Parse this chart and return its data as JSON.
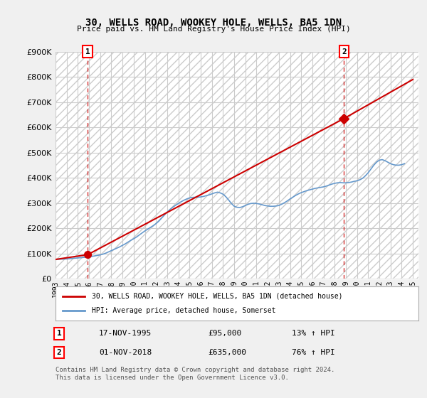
{
  "title": "30, WELLS ROAD, WOOKEY HOLE, WELLS, BA5 1DN",
  "subtitle": "Price paid vs. HM Land Registry's House Price Index (HPI)",
  "background_color": "#f0f0f0",
  "plot_bg_color": "#ffffff",
  "hatch_color": "#d0d0d0",
  "grid_color": "#cccccc",
  "property_color": "#cc0000",
  "hpi_color": "#6699cc",
  "ylim": [
    0,
    900000
  ],
  "yticks": [
    0,
    100000,
    200000,
    300000,
    400000,
    500000,
    600000,
    700000,
    800000,
    900000
  ],
  "sale1_date": "1995-11-17",
  "sale1_price": 95000,
  "sale1_label": "1",
  "sale2_date": "2018-11-01",
  "sale2_price": 635000,
  "sale2_label": "2",
  "legend_property": "30, WELLS ROAD, WOOKEY HOLE, WELLS, BA5 1DN (detached house)",
  "legend_hpi": "HPI: Average price, detached house, Somerset",
  "table_row1": [
    "1",
    "17-NOV-1995",
    "£95,000",
    "13% ↑ HPI"
  ],
  "table_row2": [
    "2",
    "01-NOV-2018",
    "£635,000",
    "76% ↑ HPI"
  ],
  "footer": "Contains HM Land Registry data © Crown copyright and database right 2024.\nThis data is licensed under the Open Government Licence v3.0.",
  "hpi_data_x": [
    1993.0,
    1993.25,
    1993.5,
    1993.75,
    1994.0,
    1994.25,
    1994.5,
    1994.75,
    1995.0,
    1995.25,
    1995.5,
    1995.75,
    1996.0,
    1996.25,
    1996.5,
    1996.75,
    1997.0,
    1997.25,
    1997.5,
    1997.75,
    1998.0,
    1998.25,
    1998.5,
    1998.75,
    1999.0,
    1999.25,
    1999.5,
    1999.75,
    2000.0,
    2000.25,
    2000.5,
    2000.75,
    2001.0,
    2001.25,
    2001.5,
    2001.75,
    2002.0,
    2002.25,
    2002.5,
    2002.75,
    2003.0,
    2003.25,
    2003.5,
    2003.75,
    2004.0,
    2004.25,
    2004.5,
    2004.75,
    2005.0,
    2005.25,
    2005.5,
    2005.75,
    2006.0,
    2006.25,
    2006.5,
    2006.75,
    2007.0,
    2007.25,
    2007.5,
    2007.75,
    2008.0,
    2008.25,
    2008.5,
    2008.75,
    2009.0,
    2009.25,
    2009.5,
    2009.75,
    2010.0,
    2010.25,
    2010.5,
    2010.75,
    2011.0,
    2011.25,
    2011.5,
    2011.75,
    2012.0,
    2012.25,
    2012.5,
    2012.75,
    2013.0,
    2013.25,
    2013.5,
    2013.75,
    2014.0,
    2014.25,
    2014.5,
    2014.75,
    2015.0,
    2015.25,
    2015.5,
    2015.75,
    2016.0,
    2016.25,
    2016.5,
    2016.75,
    2017.0,
    2017.25,
    2017.5,
    2017.75,
    2018.0,
    2018.25,
    2018.5,
    2018.75,
    2019.0,
    2019.25,
    2019.5,
    2019.75,
    2020.0,
    2020.25,
    2020.5,
    2020.75,
    2021.0,
    2021.25,
    2021.5,
    2021.75,
    2022.0,
    2022.25,
    2022.5,
    2022.75,
    2023.0,
    2023.25,
    2023.5,
    2023.75,
    2024.0,
    2024.25
  ],
  "hpi_data_y": [
    76000,
    76500,
    77000,
    77500,
    78000,
    79000,
    80000,
    81000,
    82000,
    83000,
    84000,
    85000,
    86000,
    88000,
    90000,
    92000,
    94000,
    97000,
    101000,
    106000,
    111000,
    116000,
    121000,
    126000,
    132000,
    138000,
    145000,
    152000,
    158000,
    165000,
    173000,
    181000,
    189000,
    196000,
    203000,
    210000,
    218000,
    228000,
    240000,
    252000,
    264000,
    274000,
    283000,
    291000,
    298000,
    305000,
    311000,
    316000,
    320000,
    322000,
    323000,
    323000,
    324000,
    326000,
    329000,
    332000,
    336000,
    340000,
    343000,
    340000,
    335000,
    325000,
    312000,
    298000,
    287000,
    283000,
    282000,
    285000,
    290000,
    295000,
    298000,
    299000,
    298000,
    296000,
    293000,
    290000,
    288000,
    287000,
    287000,
    288000,
    290000,
    295000,
    301000,
    308000,
    316000,
    323000,
    330000,
    336000,
    341000,
    345000,
    349000,
    352000,
    355000,
    358000,
    360000,
    362000,
    364000,
    367000,
    371000,
    375000,
    378000,
    380000,
    381000,
    380000,
    380000,
    381000,
    383000,
    386000,
    388000,
    392000,
    398000,
    408000,
    420000,
    435000,
    450000,
    462000,
    470000,
    472000,
    468000,
    462000,
    456000,
    452000,
    450000,
    450000,
    452000,
    456000
  ],
  "property_data_x": [
    1993.0,
    1995.88,
    2018.83,
    2025.0
  ],
  "property_data_y": [
    76000,
    95000,
    635000,
    790000
  ],
  "x_tick_years": [
    1993,
    1994,
    1995,
    1996,
    1997,
    1998,
    1999,
    2000,
    2001,
    2002,
    2003,
    2004,
    2005,
    2006,
    2007,
    2008,
    2009,
    2010,
    2011,
    2012,
    2013,
    2014,
    2015,
    2016,
    2017,
    2018,
    2019,
    2020,
    2021,
    2022,
    2023,
    2024,
    2025
  ]
}
